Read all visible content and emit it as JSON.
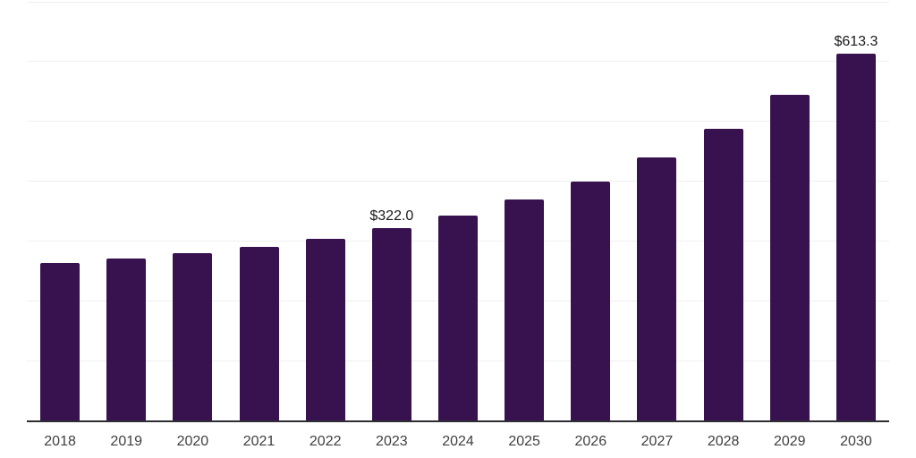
{
  "chart_data": {
    "type": "bar",
    "title": "",
    "xlabel": "",
    "ylabel": "",
    "categories": [
      "2018",
      "2019",
      "2020",
      "2021",
      "2022",
      "2023",
      "2024",
      "2025",
      "2026",
      "2027",
      "2028",
      "2029",
      "2030"
    ],
    "values": [
      263,
      271,
      280,
      290,
      303,
      322.0,
      342,
      369,
      400,
      440,
      487,
      544,
      613.3
    ],
    "point_labels": {
      "2023": "$322.0",
      "2030": "$613.3"
    },
    "ylim": [
      0,
      700
    ],
    "gridline_step": 100,
    "grid": "horizontal",
    "yticks_visible": false,
    "legend": "none",
    "colors": {
      "bar": "#38114F",
      "gridline": "#F0F0F2",
      "axis_line": "#2D2D33",
      "tick_label": "#404040",
      "data_label": "#1A1A1A",
      "background": "#FFFFFF"
    }
  }
}
